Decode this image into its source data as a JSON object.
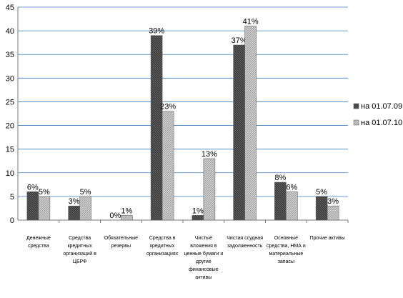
{
  "chart_data": {
    "type": "bar",
    "categories": [
      [
        "Денежные",
        "средства"
      ],
      [
        "Средства",
        "кредитных",
        "организаций в",
        "ЦБРФ"
      ],
      [
        "Обязательные",
        "резервы"
      ],
      [
        "Средства в",
        "кредитных",
        "организациях"
      ],
      [
        "Чистые",
        "вложения в",
        "ценные бумаги и",
        "другие",
        "финансовые",
        "активы"
      ],
      [
        "Чистая ссудная",
        "задолженность"
      ],
      [
        "Основные",
        "средства, НМА и",
        "материальные",
        "запасы"
      ],
      [
        "Прочие активы"
      ]
    ],
    "series": [
      {
        "name": "на 01.07.09",
        "values": [
          6,
          3,
          0,
          39,
          1,
          37,
          8,
          5
        ],
        "labels": [
          "6%",
          "3%",
          "0%",
          "39%",
          "1%",
          "37%",
          "8%",
          "5%"
        ],
        "color": "#4d4d4d"
      },
      {
        "name": "на 01.07.10",
        "values": [
          5,
          5,
          1,
          23,
          13,
          41,
          6,
          3
        ],
        "labels": [
          "5%",
          "5%",
          "1%",
          "23%",
          "13%",
          "41%",
          "6%",
          "3%"
        ],
        "color": "#b8b8b8"
      }
    ],
    "ylim": [
      0,
      45
    ],
    "yticks": [
      0,
      5,
      10,
      15,
      20,
      25,
      30,
      35,
      40,
      45
    ],
    "grid": true,
    "legend": "right"
  }
}
